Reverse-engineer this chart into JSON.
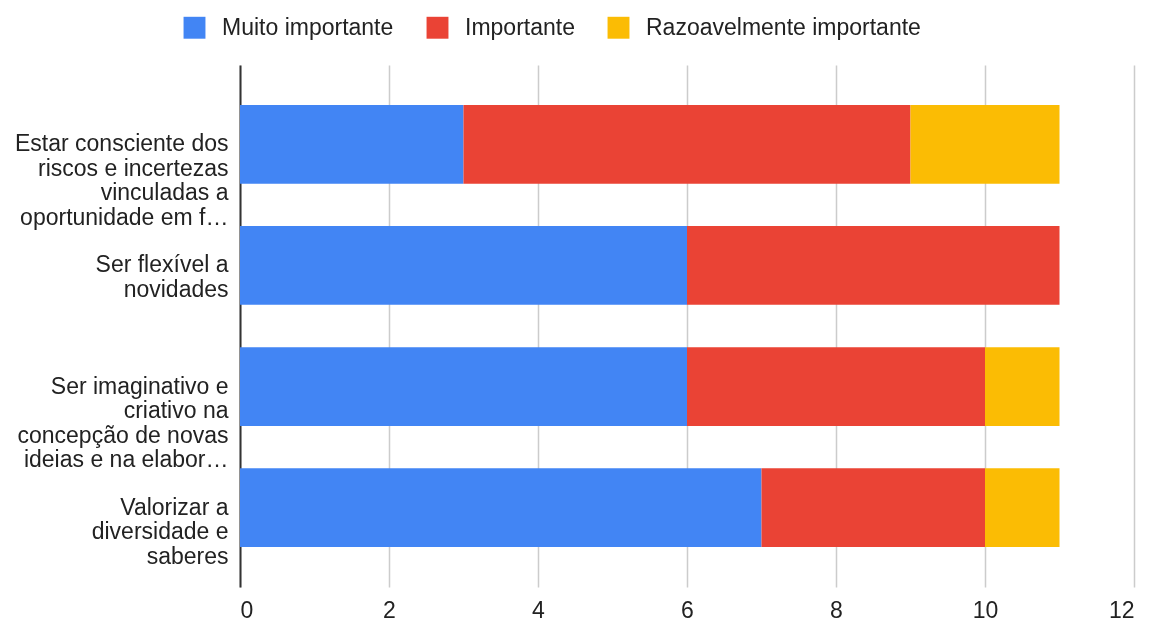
{
  "chart_data": {
    "type": "bar",
    "orientation": "horizontal",
    "stacked": true,
    "categories": [
      "Estar consciente dos riscos e incertezas vinculadas a oportunidade em f…",
      "Ser flexível a novidades",
      "Ser imaginativo e criativo na concepção de novas ideias e na elabor…",
      "Valorizar a diversidade e saberes"
    ],
    "series": [
      {
        "name": "Muito importante",
        "color": "#4285f4",
        "values": [
          3,
          6,
          6,
          7
        ]
      },
      {
        "name": "Importante",
        "color": "#ea4335",
        "values": [
          6,
          5,
          4,
          3
        ]
      },
      {
        "name": "Razoavelmente importante",
        "color": "#fbbc04",
        "values": [
          2,
          null,
          1,
          1
        ]
      }
    ],
    "xlim": [
      0,
      12
    ],
    "xticks": [
      0,
      2,
      4,
      6,
      8,
      10,
      12
    ],
    "grid": "x",
    "legend": "top"
  }
}
